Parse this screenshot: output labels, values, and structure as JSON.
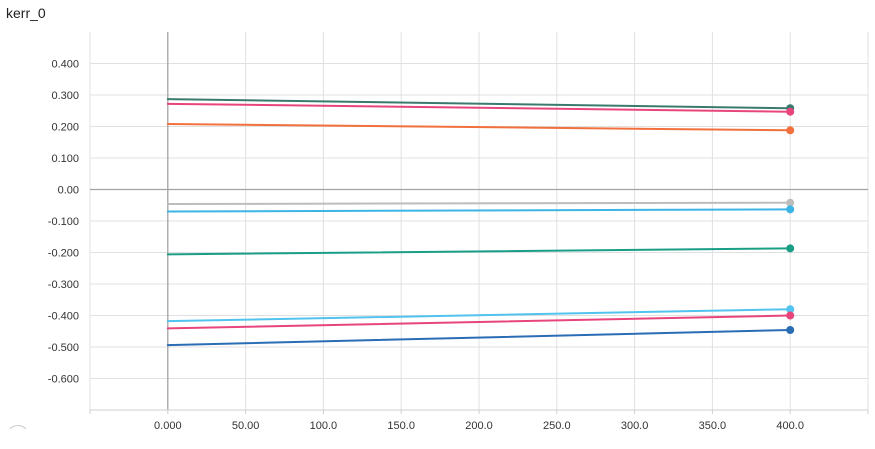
{
  "chart_data": {
    "type": "line",
    "title": "kerr_0",
    "xlabel": "",
    "ylabel": "",
    "xlim": [
      -50,
      450
    ],
    "ylim": [
      -0.7,
      0.5
    ],
    "x_ticks": [
      0,
      50,
      100,
      150,
      200,
      250,
      300,
      350,
      400
    ],
    "x_tick_labels": [
      "0.000",
      "50.00",
      "100.0",
      "150.0",
      "200.0",
      "250.0",
      "300.0",
      "350.0",
      "400.0"
    ],
    "y_ticks": [
      0.4,
      0.3,
      0.2,
      0.1,
      0.0,
      -0.1,
      -0.2,
      -0.3,
      -0.4,
      -0.5,
      -0.6
    ],
    "y_tick_labels": [
      "0.400",
      "0.300",
      "0.200",
      "0.100",
      "0.00",
      "-0.100",
      "-0.200",
      "-0.300",
      "-0.400",
      "-0.500",
      "-0.600"
    ],
    "grid": true,
    "legend": "none",
    "series": [
      {
        "color": "#3a7a6e",
        "x": [
          0,
          400
        ],
        "y": [
          0.287,
          0.258
        ]
      },
      {
        "color": "#e8457c",
        "x": [
          0,
          400
        ],
        "y": [
          0.272,
          0.247
        ]
      },
      {
        "color": "#f2703d",
        "x": [
          0,
          400
        ],
        "y": [
          0.208,
          0.188
        ]
      },
      {
        "color": "#bdbdbd",
        "x": [
          0,
          400
        ],
        "y": [
          -0.046,
          -0.042
        ]
      },
      {
        "color": "#3cb4e6",
        "x": [
          0,
          400
        ],
        "y": [
          -0.07,
          -0.063
        ]
      },
      {
        "color": "#1b9e86",
        "x": [
          0,
          400
        ],
        "y": [
          -0.206,
          -0.187
        ]
      },
      {
        "color": "#52c3ee",
        "x": [
          0,
          400
        ],
        "y": [
          -0.418,
          -0.38
        ]
      },
      {
        "color": "#e8457c",
        "x": [
          0,
          400
        ],
        "y": [
          -0.441,
          -0.4
        ]
      },
      {
        "color": "#2a6db5",
        "x": [
          0,
          400
        ],
        "y": [
          -0.494,
          -0.446
        ]
      }
    ]
  }
}
